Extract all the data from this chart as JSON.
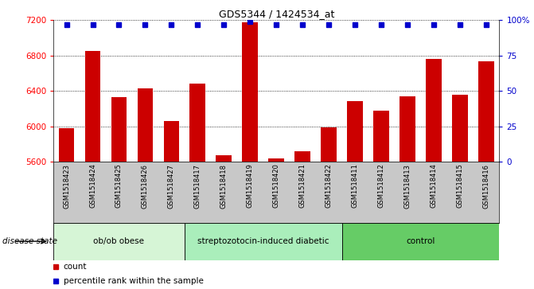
{
  "title": "GDS5344 / 1424534_at",
  "samples": [
    "GSM1518423",
    "GSM1518424",
    "GSM1518425",
    "GSM1518426",
    "GSM1518427",
    "GSM1518417",
    "GSM1518418",
    "GSM1518419",
    "GSM1518420",
    "GSM1518421",
    "GSM1518422",
    "GSM1518411",
    "GSM1518412",
    "GSM1518413",
    "GSM1518414",
    "GSM1518415",
    "GSM1518416"
  ],
  "counts": [
    5980,
    6850,
    6330,
    6430,
    6060,
    6480,
    5670,
    7180,
    5640,
    5720,
    5990,
    6290,
    6180,
    6340,
    6760,
    6360,
    6740
  ],
  "percentile_ranks": [
    97,
    97,
    97,
    97,
    97,
    97,
    97,
    99,
    97,
    97,
    97,
    97,
    97,
    97,
    97,
    97,
    97
  ],
  "groups": [
    {
      "label": "ob/ob obese",
      "start": 0,
      "end": 5,
      "color": "#d6f5d6"
    },
    {
      "label": "streptozotocin-induced diabetic",
      "start": 5,
      "end": 11,
      "color": "#aaeebb"
    },
    {
      "label": "control",
      "start": 11,
      "end": 17,
      "color": "#66cc66"
    }
  ],
  "ylim_left": [
    5600,
    7200
  ],
  "ylim_right": [
    0,
    100
  ],
  "yticks_left": [
    5600,
    6000,
    6400,
    6800,
    7200
  ],
  "yticks_right": [
    0,
    25,
    50,
    75,
    100
  ],
  "bar_color": "#cc0000",
  "dot_color": "#0000cc",
  "sample_bg_color": "#c8c8c8",
  "right_axis_color": "#0000cc",
  "disease_state_label": "disease state",
  "legend_count_label": "count",
  "legend_percentile_label": "percentile rank within the sample"
}
